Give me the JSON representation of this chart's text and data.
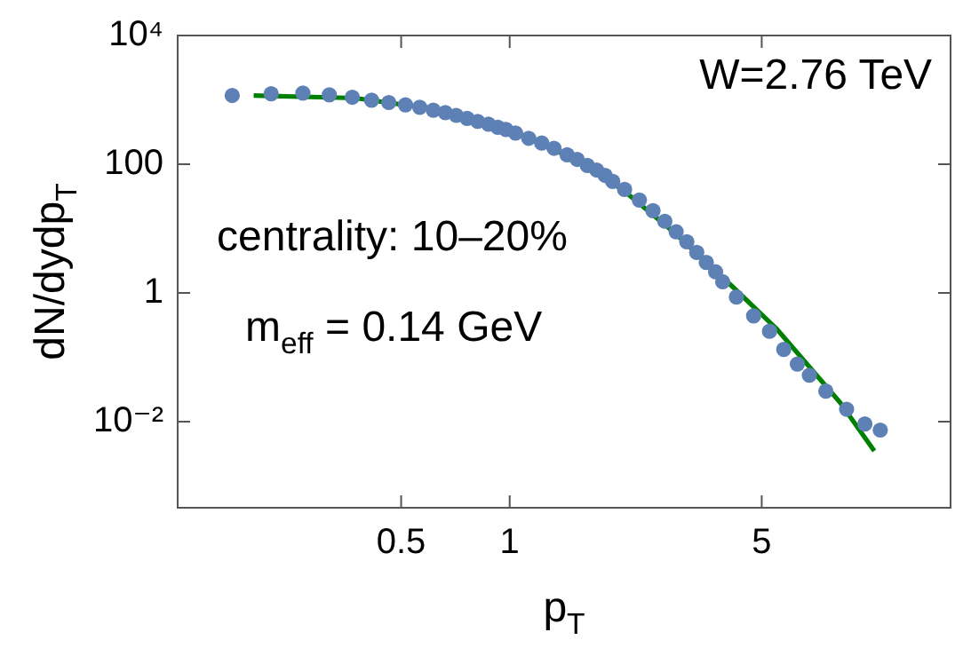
{
  "chart_data": {
    "type": "scatter",
    "xlabel": "p$_{T}$",
    "ylabel": "dN/dydp$_{T}$",
    "log": "xy",
    "xlim": [
      0.12,
      16.7
    ],
    "ylim": [
      0.00046,
      10000
    ],
    "xticks": [
      0.5,
      1,
      5
    ],
    "yticks": [
      {
        "value": 0.01,
        "label": "10⁻²"
      },
      1,
      100,
      {
        "value": 10000,
        "label": "10⁴"
      }
    ],
    "grid": false,
    "legend": false,
    "annotations": [
      "W=2.76 TeV",
      "centrality: 10–20%",
      "m$_{eff}$ = 0.14 GeV"
    ],
    "series": [
      {
        "marker": "circle",
        "color": "#5e81b5",
        "x": [
          0.17,
          0.218,
          0.267,
          0.316,
          0.366,
          0.414,
          0.462,
          0.514,
          0.563,
          0.614,
          0.663,
          0.711,
          0.762,
          0.815,
          0.873,
          0.927,
          0.977,
          1.038,
          1.129,
          1.227,
          1.327,
          1.443,
          1.539,
          1.642,
          1.743,
          1.839,
          1.931,
          2.083,
          2.289,
          2.497,
          2.693,
          2.895,
          3.099,
          3.302,
          3.51,
          3.725,
          3.897,
          4.254,
          4.748,
          5.256,
          5.755,
          6.278,
          6.777,
          7.53,
          8.598,
          9.662,
          10.66
        ],
        "values": [
          1171,
          1247,
          1271,
          1193,
          1099,
          988,
          910,
          838,
          767,
          693,
          635,
          574,
          516,
          463,
          419,
          376,
          347,
          306,
          253,
          213,
          177,
          140,
          119,
          95.7,
          81.3,
          67.2,
          54.2,
          40.6,
          27.8,
          19.0,
          13.0,
          8.93,
          6.23,
          4.27,
          2.98,
          2.13,
          1.49,
          0.865,
          0.441,
          0.254,
          0.133,
          0.0787,
          0.0526,
          0.0298,
          0.0156,
          0.0092,
          0.0074
        ]
      },
      {
        "type": "line",
        "marker": "none",
        "color": "#008000",
        "line_style": "solid",
        "x": [
          0.195,
          0.373,
          0.657,
          1.035,
          1.455,
          2.043,
          2.87,
          4.176,
          5.48,
          8.24,
          10.26
        ],
        "values": [
          1171,
          1065,
          685,
          311,
          133,
          41.3,
          8.54,
          1.21,
          0.283,
          0.02,
          0.0035
        ]
      }
    ]
  }
}
